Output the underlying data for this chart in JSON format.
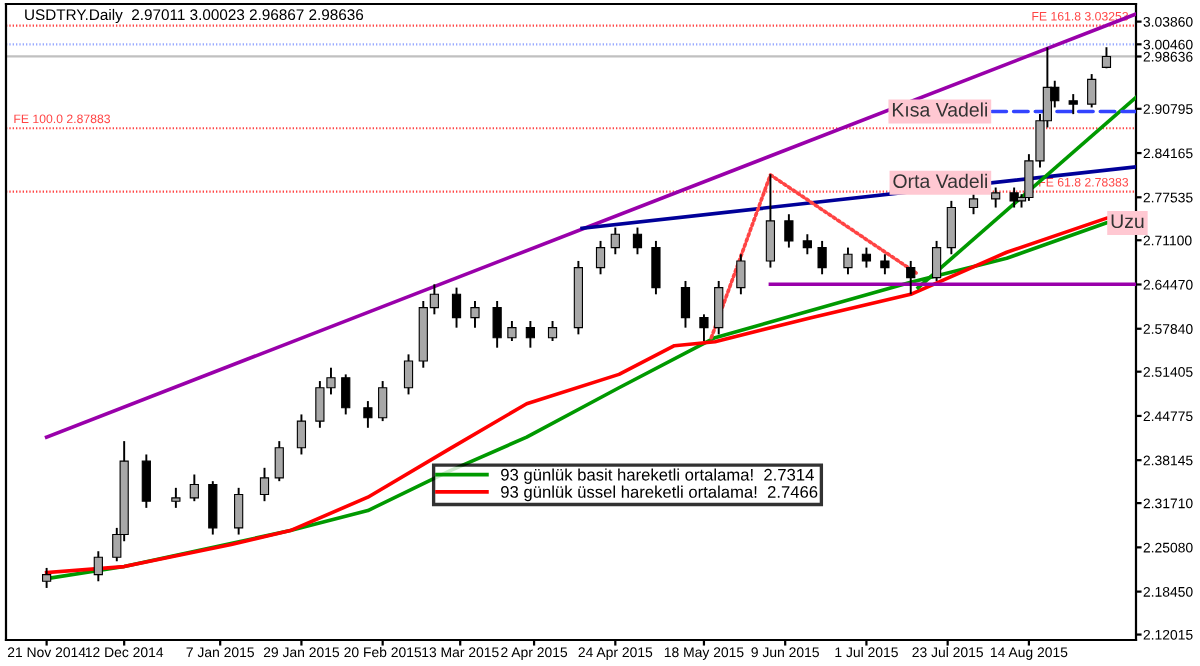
{
  "chart_data": {
    "type": "candlestick",
    "title": "USDTRY.Daily  2.97011 3.00023 2.96867 2.98636",
    "x": [
      "2014-11-21",
      "2014-12-05",
      "2014-12-10",
      "2014-12-12",
      "2014-12-18",
      "2014-12-26",
      "2014-12-31",
      "2015-01-05",
      "2015-01-12",
      "2015-01-19",
      "2015-01-23",
      "2015-01-29",
      "2015-02-03",
      "2015-02-06",
      "2015-02-10",
      "2015-02-16",
      "2015-02-20",
      "2015-02-27",
      "2015-03-03",
      "2015-03-06",
      "2015-03-12",
      "2015-03-17",
      "2015-03-23",
      "2015-03-27",
      "2015-04-01",
      "2015-04-07",
      "2015-04-14",
      "2015-04-20",
      "2015-04-24",
      "2015-04-30",
      "2015-05-05",
      "2015-05-13",
      "2015-05-18",
      "2015-05-22",
      "2015-05-28",
      "2015-06-05",
      "2015-06-10",
      "2015-06-15",
      "2015-06-19",
      "2015-06-26",
      "2015-07-01",
      "2015-07-06",
      "2015-07-13",
      "2015-07-20",
      "2015-07-24",
      "2015-07-30",
      "2015-08-05",
      "2015-08-10",
      "2015-08-12",
      "2015-08-14",
      "2015-08-17",
      "2015-08-19",
      "2015-08-21",
      "2015-08-26",
      "2015-08-31",
      "2015-09-04"
    ],
    "ohlc": [
      [
        2.2,
        2.22,
        2.19,
        2.21
      ],
      [
        2.21,
        2.245,
        2.2,
        2.236
      ],
      [
        2.236,
        2.28,
        2.23,
        2.27
      ],
      [
        2.27,
        2.41,
        2.26,
        2.38
      ],
      [
        2.38,
        2.39,
        2.31,
        2.32
      ],
      [
        2.32,
        2.34,
        2.31,
        2.325
      ],
      [
        2.325,
        2.36,
        2.32,
        2.345
      ],
      [
        2.345,
        2.35,
        2.27,
        2.28
      ],
      [
        2.28,
        2.34,
        2.27,
        2.33
      ],
      [
        2.33,
        2.37,
        2.32,
        2.355
      ],
      [
        2.355,
        2.41,
        2.35,
        2.4
      ],
      [
        2.4,
        2.45,
        2.39,
        2.44
      ],
      [
        2.44,
        2.5,
        2.43,
        2.49
      ],
      [
        2.49,
        2.52,
        2.48,
        2.505
      ],
      [
        2.505,
        2.51,
        2.45,
        2.46
      ],
      [
        2.46,
        2.47,
        2.43,
        2.445
      ],
      [
        2.445,
        2.5,
        2.44,
        2.49
      ],
      [
        2.49,
        2.54,
        2.48,
        2.53
      ],
      [
        2.53,
        2.62,
        2.52,
        2.61
      ],
      [
        2.61,
        2.645,
        2.6,
        2.63
      ],
      [
        2.63,
        2.64,
        2.58,
        2.595
      ],
      [
        2.595,
        2.62,
        2.58,
        2.61
      ],
      [
        2.61,
        2.62,
        2.55,
        2.565
      ],
      [
        2.565,
        2.59,
        2.56,
        2.58
      ],
      [
        2.58,
        2.59,
        2.55,
        2.565
      ],
      [
        2.565,
        2.59,
        2.56,
        2.58
      ],
      [
        2.58,
        2.68,
        2.57,
        2.67
      ],
      [
        2.67,
        2.71,
        2.66,
        2.7
      ],
      [
        2.7,
        2.73,
        2.69,
        2.72
      ],
      [
        2.72,
        2.73,
        2.69,
        2.7
      ],
      [
        2.7,
        2.71,
        2.63,
        2.64
      ],
      [
        2.64,
        2.65,
        2.58,
        2.595
      ],
      [
        2.595,
        2.6,
        2.56,
        2.58
      ],
      [
        2.58,
        2.65,
        2.57,
        2.64
      ],
      [
        2.64,
        2.69,
        2.63,
        2.68
      ],
      [
        2.68,
        2.81,
        2.67,
        2.74
      ],
      [
        2.74,
        2.75,
        2.7,
        2.71
      ],
      [
        2.71,
        2.72,
        2.69,
        2.7
      ],
      [
        2.7,
        2.71,
        2.66,
        2.67
      ],
      [
        2.67,
        2.7,
        2.66,
        2.69
      ],
      [
        2.69,
        2.7,
        2.67,
        2.68
      ],
      [
        2.68,
        2.69,
        2.66,
        2.67
      ],
      [
        2.67,
        2.68,
        2.63,
        2.655
      ],
      [
        2.655,
        2.71,
        2.65,
        2.7
      ],
      [
        2.7,
        2.77,
        2.69,
        2.76
      ],
      [
        2.76,
        2.78,
        2.75,
        2.773
      ],
      [
        2.773,
        2.79,
        2.76,
        2.782
      ],
      [
        2.782,
        2.79,
        2.76,
        2.77
      ],
      [
        2.77,
        2.78,
        2.76,
        2.775
      ],
      [
        2.775,
        2.84,
        2.77,
        2.83
      ],
      [
        2.83,
        2.9,
        2.82,
        2.89
      ],
      [
        2.89,
        3.0,
        2.88,
        2.94
      ],
      [
        2.94,
        2.95,
        2.91,
        2.92
      ],
      [
        2.92,
        2.93,
        2.9,
        2.915
      ],
      [
        2.915,
        2.96,
        2.91,
        2.952
      ],
      [
        2.97011,
        3.00023,
        2.96867,
        2.98636
      ]
    ],
    "series": [
      {
        "type": "line",
        "name": "93 günlük basit hareketli ortalama!  2.7314",
        "color": "#009900",
        "x": [
          "2014-11-21",
          "2014-12-12",
          "2015-01-26",
          "2015-02-16",
          "2015-03-10",
          "2015-03-31",
          "2015-04-25",
          "2015-05-21",
          "2015-07-13",
          "2015-08-08",
          "2015-09-04"
        ],
        "values": [
          2.204,
          2.222,
          2.276,
          2.306,
          2.365,
          2.416,
          2.49,
          2.565,
          2.648,
          2.684,
          2.737
        ]
      },
      {
        "type": "line",
        "name": "93 günlük üssel hareketli ortalama!  2.7466",
        "color": "#ff0000",
        "x": [
          "2014-11-21",
          "2014-12-12",
          "2015-01-10",
          "2015-01-26",
          "2015-02-16",
          "2015-03-10",
          "2015-03-31",
          "2015-04-25",
          "2015-05-10",
          "2015-05-21",
          "2015-06-16",
          "2015-07-13",
          "2015-08-08",
          "2015-09-04"
        ],
        "values": [
          2.213,
          2.222,
          2.255,
          2.276,
          2.326,
          2.398,
          2.466,
          2.51,
          2.553,
          2.559,
          2.595,
          2.63,
          2.693,
          2.744
        ]
      },
      {
        "type": "line",
        "color": "#9900aa",
        "x": [
          "2014-11-21",
          "2015-09-12"
        ],
        "values": [
          2.416,
          3.05
        ]
      },
      {
        "type": "line",
        "color": "#000099",
        "x": [
          "2015-04-15",
          "2015-09-12"
        ],
        "values": [
          2.729,
          2.821
        ]
      },
      {
        "type": "line",
        "color": "#009900",
        "x": [
          "2015-07-15",
          "2015-09-12"
        ],
        "values": [
          2.64,
          2.925
        ]
      },
      {
        "type": "line",
        "color": "#9900aa",
        "x": [
          "2015-06-05",
          "2015-09-12"
        ],
        "values": [
          2.645,
          2.645
        ]
      },
      {
        "type": "line",
        "color": "#ff4444",
        "line_style": "dotted",
        "x": [
          "2015-05-20",
          "2015-06-05",
          "2015-07-15"
        ],
        "values": [
          2.565,
          2.809,
          2.66
        ]
      },
      {
        "type": "line",
        "color": "#3344ff",
        "line_style": "dashed",
        "x": [
          "2015-08-04",
          "2015-09-12"
        ],
        "values": [
          2.904,
          2.904
        ]
      }
    ],
    "ref_lines": [
      {
        "axis": "y",
        "value": 3.03253,
        "label": "FE 161.8 3.03253",
        "color": "#ff4444",
        "line_style": "dotted"
      },
      {
        "axis": "y",
        "value": 2.87883,
        "label": "FE 100.0 2.87883",
        "color": "#ff4444",
        "line_style": "dotted"
      },
      {
        "axis": "y",
        "value": 2.78383,
        "label": "FE 61.8 2.78383",
        "color": "#ff4444",
        "line_style": "dotted"
      },
      {
        "axis": "y",
        "value": 3.0046,
        "color": "#99aaff",
        "line_style": "dotted"
      },
      {
        "axis": "y",
        "value": 2.98636,
        "color": "#c0c0c0",
        "line_style": "solid"
      }
    ],
    "annotations": [
      {
        "text": "Kısa Vadeli",
        "x": "2015-08-04",
        "y": 2.904
      },
      {
        "text": "Orta Vadeli",
        "x": "2015-08-04",
        "y": 2.797
      },
      {
        "text": "Uzu",
        "x": "2015-09-04",
        "y": 2.737
      }
    ],
    "xlim": [
      "2014-11-10",
      "2015-09-12"
    ],
    "xticks": [
      {
        "value": "2014-11-21",
        "label": "21 Nov 2014"
      },
      {
        "value": "2014-12-12",
        "label": "12 Dec 2014"
      },
      {
        "value": "2015-01-07",
        "label": "7 Jan 2015"
      },
      {
        "value": "2015-01-29",
        "label": "29 Jan 2015"
      },
      {
        "value": "2015-02-20",
        "label": "20 Feb 2015"
      },
      {
        "value": "2015-03-13",
        "label": "13 Mar 2015"
      },
      {
        "value": "2015-04-02",
        "label": "2 Apr 2015"
      },
      {
        "value": "2015-04-24",
        "label": "24 Apr 2015"
      },
      {
        "value": "2015-05-18",
        "label": "18 May 2015"
      },
      {
        "value": "2015-06-09",
        "label": "9 Jun 2015"
      },
      {
        "value": "2015-07-01",
        "label": "1 Jul 2015"
      },
      {
        "value": "2015-07-23",
        "label": "23 Jul 2015"
      },
      {
        "value": "2015-08-14",
        "label": "14 Aug 2015"
      }
    ],
    "ylim": [
      2.112,
      3.065
    ],
    "yticks": [
      {
        "value": 3.0386,
        "label": "3.03860"
      },
      {
        "value": 3.0046,
        "label": "3.00460"
      },
      {
        "value": 2.98636,
        "label": "2.98636"
      },
      {
        "value": 2.90795,
        "label": "2.90795"
      },
      {
        "value": 2.84165,
        "label": "2.84165"
      },
      {
        "value": 2.77535,
        "label": "2.77535"
      },
      {
        "value": 2.711,
        "label": "2.71100"
      },
      {
        "value": 2.6447,
        "label": "2.64470"
      },
      {
        "value": 2.5784,
        "label": "2.57840"
      },
      {
        "value": 2.51405,
        "label": "2.51405"
      },
      {
        "value": 2.44775,
        "label": "2.44775"
      },
      {
        "value": 2.38145,
        "label": "2.38145"
      },
      {
        "value": 2.3171,
        "label": "2.31710"
      },
      {
        "value": 2.2508,
        "label": "2.25080"
      },
      {
        "value": 2.1845,
        "label": "2.18450"
      },
      {
        "value": 2.12015,
        "label": "2.12015"
      }
    ],
    "legend": "bottom",
    "grid": false
  }
}
